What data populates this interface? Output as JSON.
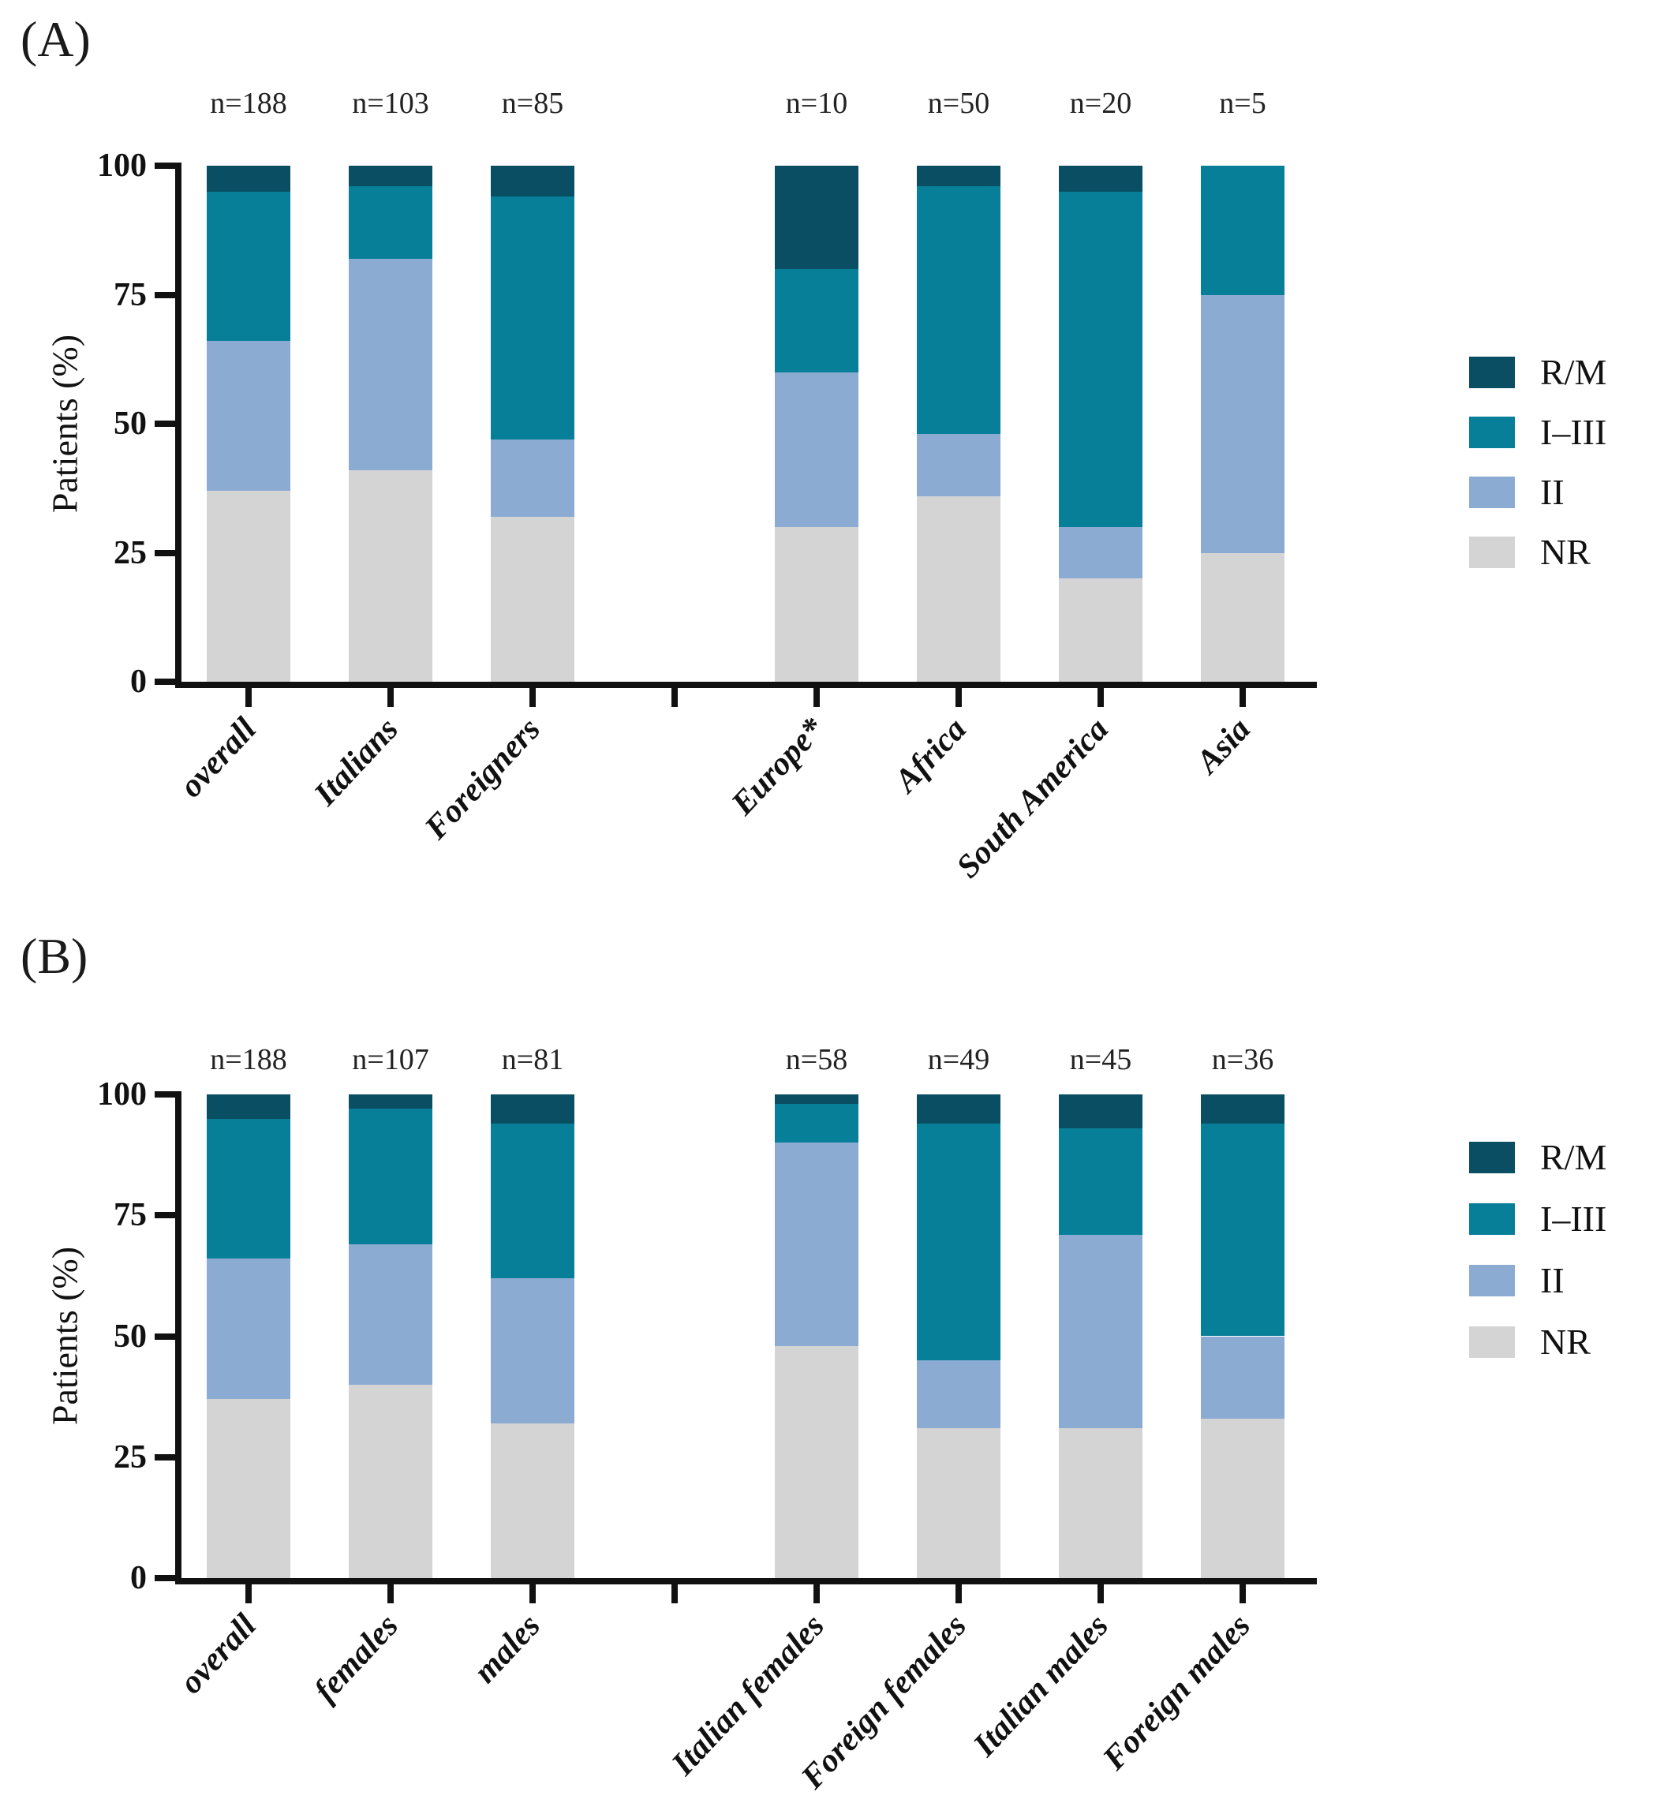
{
  "figure_title": "",
  "colors": {
    "rm": "#094e62",
    "i_iii": "#077f99",
    "ii": "#8cabd3",
    "nr": "#d4d4d4",
    "axis": "#111111",
    "background": "#ffffff"
  },
  "legend_order": [
    "R/M",
    "I–III",
    "II",
    "NR"
  ],
  "chart_data": [
    {
      "type": "bar",
      "stacked": true,
      "panel_label": "(A)",
      "ylabel": "Patients (%)",
      "ylim": [
        0,
        100
      ],
      "y_ticks": [
        0,
        25,
        50,
        75,
        100
      ],
      "grid": false,
      "legend_position": "right",
      "categories": [
        "overall",
        "Italians",
        "Foreigners",
        "Europe*",
        "Africa",
        "South America",
        "Asia"
      ],
      "n_labels": [
        "n=188",
        "n=103",
        "n=85",
        "n=10",
        "n=50",
        "n=20",
        "n=5"
      ],
      "gap_after_index": 2,
      "series": [
        {
          "name": "NR",
          "color_key": "nr",
          "values": [
            37,
            41,
            32,
            30,
            36,
            20,
            25
          ]
        },
        {
          "name": "II",
          "color_key": "ii",
          "values": [
            29,
            41,
            15,
            30,
            12,
            10,
            50
          ]
        },
        {
          "name": "I–III",
          "color_key": "i_iii",
          "values": [
            29,
            14,
            47,
            20,
            48,
            65,
            25
          ]
        },
        {
          "name": "R/M",
          "color_key": "rm",
          "values": [
            5,
            4,
            6,
            20,
            4,
            5,
            0
          ]
        }
      ]
    },
    {
      "type": "bar",
      "stacked": true,
      "panel_label": "(B)",
      "ylabel": "Patients (%)",
      "ylim": [
        0,
        100
      ],
      "y_ticks": [
        0,
        25,
        50,
        75,
        100
      ],
      "grid": false,
      "legend_position": "right",
      "categories": [
        "overall",
        "females",
        "males",
        "Italian females",
        "Foreign females",
        "Italian males",
        "Foreign males"
      ],
      "n_labels": [
        "n=188",
        "n=107",
        "n=81",
        "n=58",
        "n=49",
        "n=45",
        "n=36"
      ],
      "gap_after_index": 2,
      "series": [
        {
          "name": "NR",
          "color_key": "nr",
          "values": [
            37,
            40,
            32,
            48,
            31,
            31,
            33
          ]
        },
        {
          "name": "II",
          "color_key": "ii",
          "values": [
            29,
            29,
            30,
            42,
            14,
            40,
            17
          ]
        },
        {
          "name": "I–III",
          "color_key": "i_iii",
          "values": [
            29,
            28,
            32,
            8,
            49,
            22,
            44
          ]
        },
        {
          "name": "R/M",
          "color_key": "rm",
          "values": [
            5,
            3,
            6,
            2,
            6,
            7,
            6
          ]
        }
      ]
    }
  ]
}
